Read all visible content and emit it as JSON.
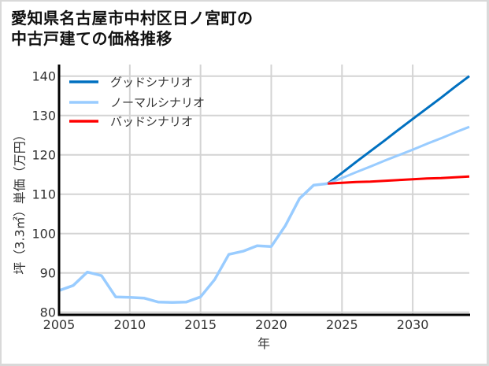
{
  "title": {
    "line1": "愛知県名古屋市中村区日ノ宮町の",
    "line2": "中古戸建ての価格推移"
  },
  "chart_data": {
    "type": "line",
    "title": "愛知県名古屋市中村区日ノ宮町の中古戸建ての価格推移",
    "xlabel": "年",
    "ylabel": "坪（3.3㎡）単価（万円）",
    "xlim": [
      2005,
      2034
    ],
    "ylim": [
      79.34,
      142.94
    ],
    "xticks": [
      2005,
      2010,
      2015,
      2020,
      2025,
      2030
    ],
    "yticks": [
      80,
      90,
      100,
      110,
      120,
      130,
      140
    ],
    "grid": true,
    "legend_position": "upper left",
    "legend": [
      {
        "label": "グッドシナリオ",
        "color": "#0070c0"
      },
      {
        "label": "ノーマルシナリオ",
        "color": "#99ccff"
      },
      {
        "label": "バッドシナリオ",
        "color": "#ff0000"
      }
    ],
    "series": [
      {
        "name": "",
        "in_legend": false,
        "color": "#99ccff",
        "x": [
          2005,
          2006,
          2007,
          2008,
          2009,
          2010,
          2011,
          2012,
          2013,
          2014,
          2015,
          2016,
          2017,
          2018,
          2019,
          2020,
          2021,
          2022,
          2023,
          2024
        ],
        "values": [
          85.5,
          86.8,
          90.2,
          89.3,
          83.9,
          83.8,
          83.6,
          82.6,
          82.5,
          82.6,
          83.9,
          88.3,
          94.7,
          95.5,
          96.9,
          96.7,
          102.0,
          108.9,
          112.3,
          112.7
        ]
      },
      {
        "name": "グッドシナリオ",
        "in_legend": true,
        "color": "#0070c0",
        "x": [
          2024,
          2025,
          2026,
          2027,
          2028,
          2029,
          2030,
          2031,
          2032,
          2033,
          2034
        ],
        "values": [
          112.7,
          115.4,
          118.2,
          120.9,
          123.6,
          126.4,
          129.1,
          131.8,
          134.5,
          137.3,
          140.0
        ]
      },
      {
        "name": "ノーマルシナリオ",
        "in_legend": true,
        "color": "#99ccff",
        "x": [
          2024,
          2025,
          2026,
          2027,
          2028,
          2029,
          2030,
          2031,
          2032,
          2033,
          2034
        ],
        "values": [
          112.7,
          114.1,
          115.6,
          117.0,
          118.5,
          119.9,
          121.3,
          122.8,
          124.2,
          125.7,
          127.1
        ]
      },
      {
        "name": "バッドシナリオ",
        "in_legend": true,
        "color": "#ff0000",
        "x": [
          2024,
          2025,
          2026,
          2027,
          2028,
          2029,
          2030,
          2031,
          2032,
          2033,
          2034
        ],
        "values": [
          112.7,
          112.9,
          113.1,
          113.2,
          113.4,
          113.6,
          113.8,
          114.0,
          114.1,
          114.3,
          114.5
        ]
      }
    ]
  }
}
